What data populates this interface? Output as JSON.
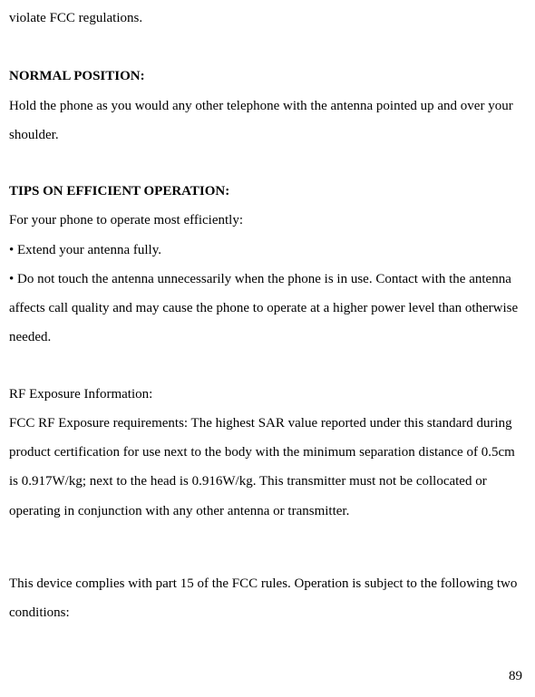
{
  "content": {
    "fragment": "violate FCC regulations.",
    "heading1": "NORMAL POSITION:",
    "para1": "Hold the phone as you would any other telephone with the antenna pointed up and over your shoulder.",
    "heading2": "TIPS ON EFFICIENT OPERATION:",
    "para2": "For your phone to operate most efficiently:",
    "bullet1": "• Extend your antenna fully.",
    "bullet2": "• Do not touch the antenna unnecessarily when the phone is in use. Contact with the antenna affects call quality and may cause the phone to operate at a higher power level than otherwise needed.",
    "subhead": "RF Exposure Information:",
    "para3": "FCC RF Exposure requirements: The highest SAR value reported under this standard during product certification for use next to the body with the minimum separation distance of 0.5cm is 0.917W/kg; next to the head is 0.916W/kg. This transmitter must not be collocated or operating in conjunction with any other antenna or transmitter.",
    "para4": "This device complies with part 15 of the FCC rules. Operation is subject to the following two conditions:"
  },
  "page_number": "89"
}
